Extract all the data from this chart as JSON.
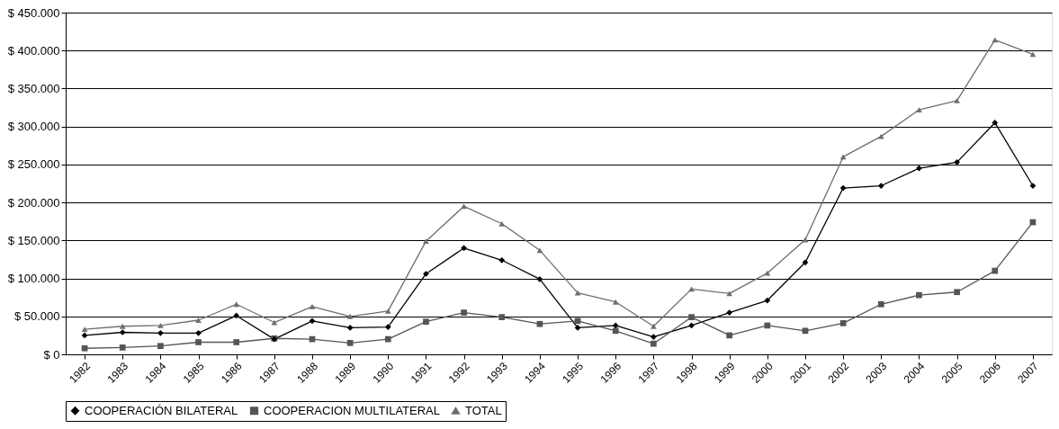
{
  "chart_data": {
    "type": "line",
    "categories": [
      "1982",
      "1983",
      "1984",
      "1985",
      "1986",
      "1987",
      "1988",
      "1989",
      "1990",
      "1991",
      "1992",
      "1993",
      "1994",
      "1995",
      "1996",
      "1997",
      "1998",
      "1999",
      "2000",
      "2001",
      "2002",
      "2003",
      "2004",
      "2005",
      "2006",
      "2007"
    ],
    "series": [
      {
        "name": "COOPERACIÓN BILATERAL",
        "color": "#000000",
        "marker": "diamond",
        "values": [
          25000,
          29000,
          28000,
          28000,
          51000,
          20000,
          44000,
          35000,
          36000,
          106000,
          140000,
          124000,
          99000,
          35000,
          38000,
          23000,
          38000,
          55000,
          71000,
          121000,
          219000,
          222000,
          245000,
          253000,
          305000,
          222000
        ]
      },
      {
        "name": "COOPERACION MULTILATERAL",
        "color": "#555555",
        "marker": "square",
        "values": [
          8000,
          9000,
          11000,
          16000,
          16000,
          21000,
          20000,
          15000,
          20000,
          43000,
          55000,
          49000,
          40000,
          44000,
          31000,
          14000,
          49000,
          25000,
          38000,
          31000,
          41000,
          66000,
          78000,
          82000,
          110000,
          174000
        ]
      },
      {
        "name": "TOTAL",
        "color": "#6e6e6e",
        "marker": "triangle",
        "values": [
          33000,
          37000,
          38000,
          45000,
          66000,
          42000,
          63000,
          50000,
          57000,
          149000,
          195000,
          172000,
          137000,
          81000,
          69000,
          37000,
          86000,
          80000,
          107000,
          151000,
          260000,
          287000,
          322000,
          334000,
          414000,
          395000
        ]
      }
    ],
    "ylim": [
      0,
      450000
    ],
    "yticks": [
      {
        "value": 0,
        "label": "$ 0"
      },
      {
        "value": 50000,
        "label": "$ 50.000"
      },
      {
        "value": 100000,
        "label": "$ 100.000"
      },
      {
        "value": 150000,
        "label": "$ 150.000"
      },
      {
        "value": 200000,
        "label": "$ 200.000"
      },
      {
        "value": 250000,
        "label": "$ 250.000"
      },
      {
        "value": 300000,
        "label": "$ 300.000"
      },
      {
        "value": 350000,
        "label": "$ 350.000"
      },
      {
        "value": 400000,
        "label": "$ 400.000"
      },
      {
        "value": 450000,
        "label": "$ 450.000"
      }
    ],
    "grid": "y",
    "legend": "bottom",
    "line_style": "solid"
  }
}
